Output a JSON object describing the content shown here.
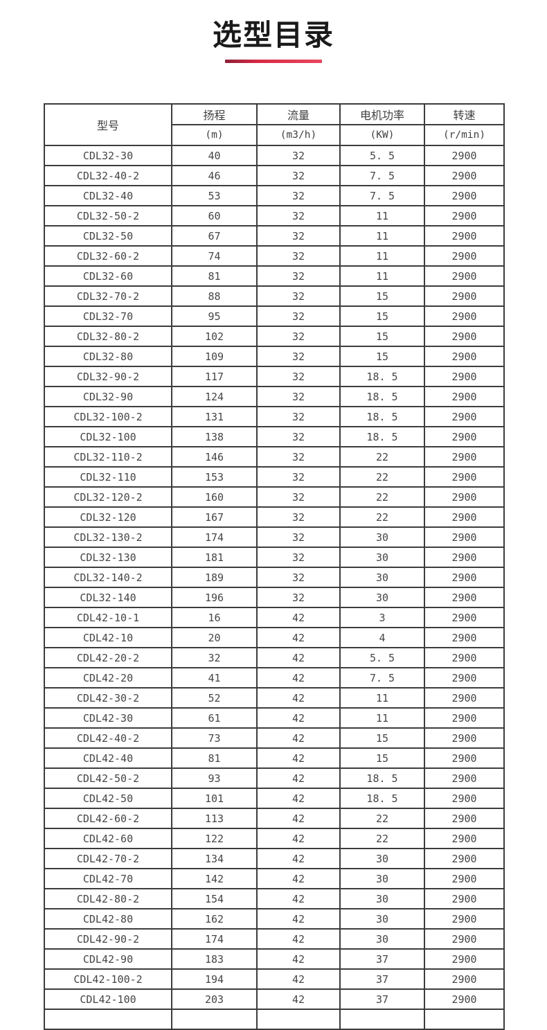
{
  "page": {
    "title": "选型目录",
    "accent_color": "#d92a45"
  },
  "table": {
    "model_header": "型号",
    "columns": [
      {
        "name": "扬程",
        "unit": "(m)"
      },
      {
        "name": "流量",
        "unit": "(m3/h)"
      },
      {
        "name": "电机功率",
        "unit": "(KW)"
      },
      {
        "name": "转速",
        "unit": "(r/min)"
      }
    ],
    "rows": [
      [
        "CDL32-30",
        "40",
        "32",
        "5. 5",
        "2900"
      ],
      [
        "CDL32-40-2",
        "46",
        "32",
        "7. 5",
        "2900"
      ],
      [
        "CDL32-40",
        "53",
        "32",
        "7. 5",
        "2900"
      ],
      [
        "CDL32-50-2",
        "60",
        "32",
        "11",
        "2900"
      ],
      [
        "CDL32-50",
        "67",
        "32",
        "11",
        "2900"
      ],
      [
        "CDL32-60-2",
        "74",
        "32",
        "11",
        "2900"
      ],
      [
        "CDL32-60",
        "81",
        "32",
        "11",
        "2900"
      ],
      [
        "CDL32-70-2",
        "88",
        "32",
        "15",
        "2900"
      ],
      [
        "CDL32-70",
        "95",
        "32",
        "15",
        "2900"
      ],
      [
        "CDL32-80-2",
        "102",
        "32",
        "15",
        "2900"
      ],
      [
        "CDL32-80",
        "109",
        "32",
        "15",
        "2900"
      ],
      [
        "CDL32-90-2",
        "117",
        "32",
        "18. 5",
        "2900"
      ],
      [
        "CDL32-90",
        "124",
        "32",
        "18. 5",
        "2900"
      ],
      [
        "CDL32-100-2",
        "131",
        "32",
        "18. 5",
        "2900"
      ],
      [
        "CDL32-100",
        "138",
        "32",
        "18. 5",
        "2900"
      ],
      [
        "CDL32-110-2",
        "146",
        "32",
        "22",
        "2900"
      ],
      [
        "CDL32-110",
        "153",
        "32",
        "22",
        "2900"
      ],
      [
        "CDL32-120-2",
        "160",
        "32",
        "22",
        "2900"
      ],
      [
        "CDL32-120",
        "167",
        "32",
        "22",
        "2900"
      ],
      [
        "CDL32-130-2",
        "174",
        "32",
        "30",
        "2900"
      ],
      [
        "CDL32-130",
        "181",
        "32",
        "30",
        "2900"
      ],
      [
        "CDL32-140-2",
        "189",
        "32",
        "30",
        "2900"
      ],
      [
        "CDL32-140",
        "196",
        "32",
        "30",
        "2900"
      ],
      [
        "CDL42-10-1",
        "16",
        "42",
        "3",
        "2900"
      ],
      [
        "CDL42-10",
        "20",
        "42",
        "4",
        "2900"
      ],
      [
        "CDL42-20-2",
        "32",
        "42",
        "5. 5",
        "2900"
      ],
      [
        "CDL42-20",
        "41",
        "42",
        "7. 5",
        "2900"
      ],
      [
        "CDL42-30-2",
        "52",
        "42",
        "11",
        "2900"
      ],
      [
        "CDL42-30",
        "61",
        "42",
        "11",
        "2900"
      ],
      [
        "CDL42-40-2",
        "73",
        "42",
        "15",
        "2900"
      ],
      [
        "CDL42-40",
        "81",
        "42",
        "15",
        "2900"
      ],
      [
        "CDL42-50-2",
        "93",
        "42",
        "18. 5",
        "2900"
      ],
      [
        "CDL42-50",
        "101",
        "42",
        "18. 5",
        "2900"
      ],
      [
        "CDL42-60-2",
        "113",
        "42",
        "22",
        "2900"
      ],
      [
        "CDL42-60",
        "122",
        "42",
        "22",
        "2900"
      ],
      [
        "CDL42-70-2",
        "134",
        "42",
        "30",
        "2900"
      ],
      [
        "CDL42-70",
        "142",
        "42",
        "30",
        "2900"
      ],
      [
        "CDL42-80-2",
        "154",
        "42",
        "30",
        "2900"
      ],
      [
        "CDL42-80",
        "162",
        "42",
        "30",
        "2900"
      ],
      [
        "CDL42-90-2",
        "174",
        "42",
        "30",
        "2900"
      ],
      [
        "CDL42-90",
        "183",
        "42",
        "37",
        "2900"
      ],
      [
        "CDL42-100-2",
        "194",
        "42",
        "37",
        "2900"
      ],
      [
        "CDL42-100",
        "203",
        "42",
        "37",
        "2900"
      ]
    ]
  }
}
